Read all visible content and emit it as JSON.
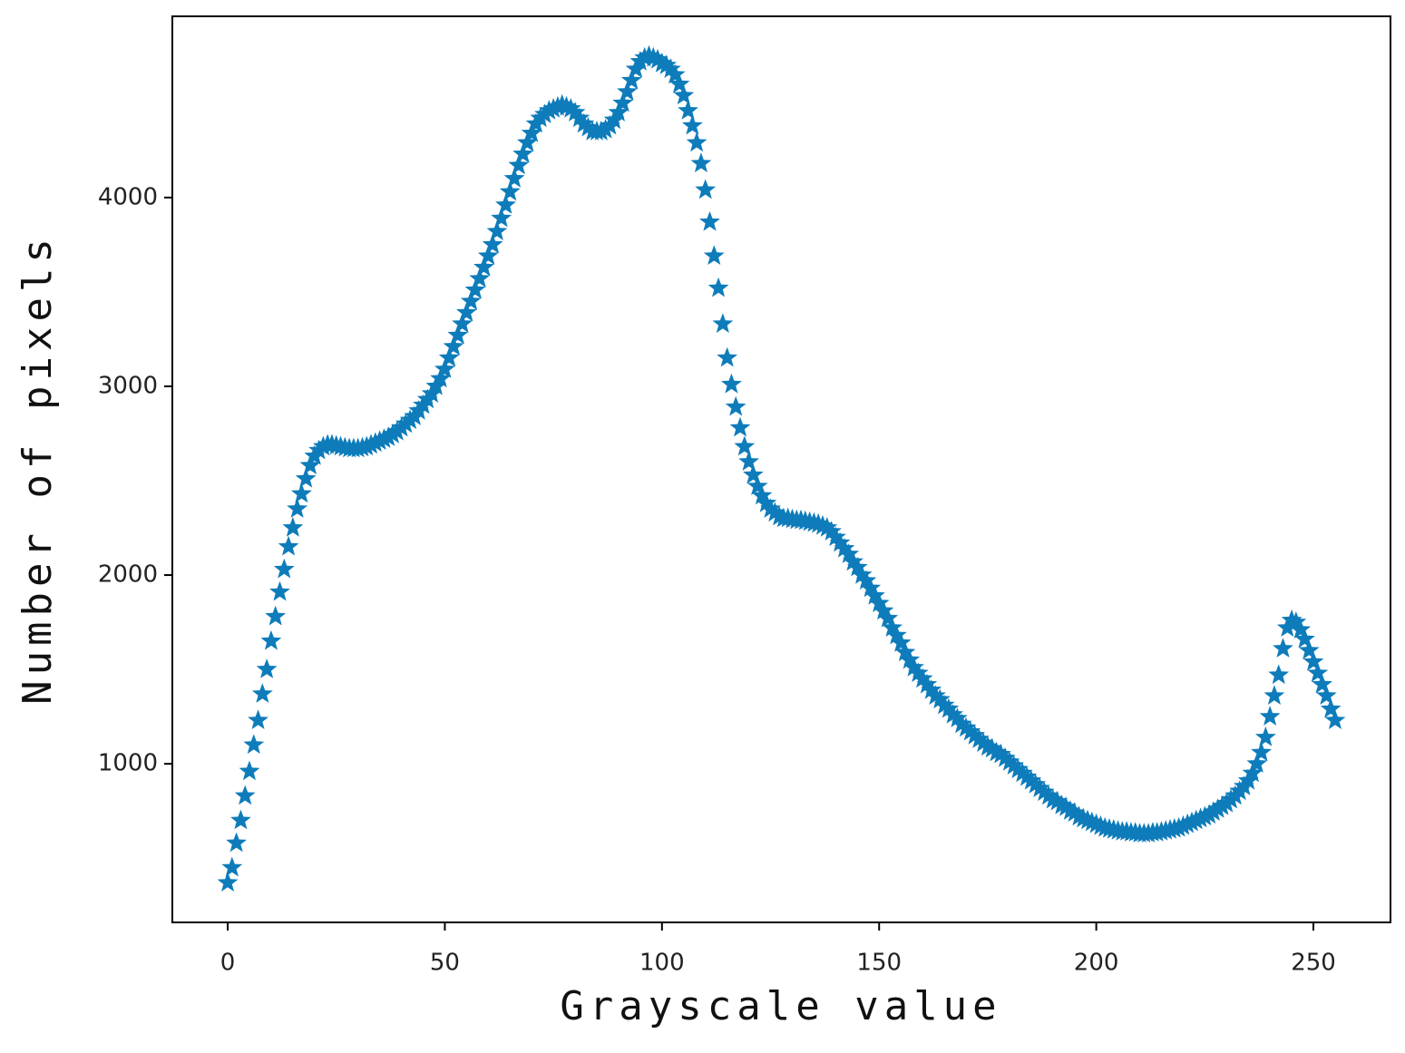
{
  "chart_data": {
    "type": "scatter",
    "x_label": "Grayscale value",
    "y_label": "Number of pixels",
    "marker": "star",
    "color": "#0e7cba",
    "xlim": [
      -12.75,
      267.75
    ],
    "ylim": [
      160,
      4960
    ],
    "xticks": [
      0,
      50,
      100,
      150,
      200,
      250
    ],
    "yticks": [
      1000,
      2000,
      3000,
      4000
    ],
    "x": [
      0,
      1,
      2,
      3,
      4,
      5,
      6,
      7,
      8,
      9,
      10,
      11,
      12,
      13,
      14,
      15,
      16,
      17,
      18,
      19,
      20,
      21,
      22,
      23,
      24,
      25,
      26,
      27,
      28,
      29,
      30,
      31,
      32,
      33,
      34,
      35,
      36,
      37,
      38,
      39,
      40,
      41,
      42,
      43,
      44,
      45,
      46,
      47,
      48,
      49,
      50,
      51,
      52,
      53,
      54,
      55,
      56,
      57,
      58,
      59,
      60,
      61,
      62,
      63,
      64,
      65,
      66,
      67,
      68,
      69,
      70,
      71,
      72,
      73,
      74,
      75,
      76,
      77,
      78,
      79,
      80,
      81,
      82,
      83,
      84,
      85,
      86,
      87,
      88,
      89,
      90,
      91,
      92,
      93,
      94,
      95,
      96,
      97,
      98,
      99,
      100,
      101,
      102,
      103,
      104,
      105,
      106,
      107,
      108,
      109,
      110,
      111,
      112,
      113,
      114,
      115,
      116,
      117,
      118,
      119,
      120,
      121,
      122,
      123,
      124,
      125,
      126,
      127,
      128,
      129,
      130,
      131,
      132,
      133,
      134,
      135,
      136,
      137,
      138,
      139,
      140,
      141,
      142,
      143,
      144,
      145,
      146,
      147,
      148,
      149,
      150,
      151,
      152,
      153,
      154,
      155,
      156,
      157,
      158,
      159,
      160,
      161,
      162,
      163,
      164,
      165,
      166,
      167,
      168,
      169,
      170,
      171,
      172,
      173,
      174,
      175,
      176,
      177,
      178,
      179,
      180,
      181,
      182,
      183,
      184,
      185,
      186,
      187,
      188,
      189,
      190,
      191,
      192,
      193,
      194,
      195,
      196,
      197,
      198,
      199,
      200,
      201,
      202,
      203,
      204,
      205,
      206,
      207,
      208,
      209,
      210,
      211,
      212,
      213,
      214,
      215,
      216,
      217,
      218,
      219,
      220,
      221,
      222,
      223,
      224,
      225,
      226,
      227,
      228,
      229,
      230,
      231,
      232,
      233,
      234,
      235,
      236,
      237,
      238,
      239,
      240,
      241,
      242,
      243,
      244,
      245,
      246,
      247,
      248,
      249,
      250,
      251,
      252,
      253,
      254,
      255
    ],
    "values": [
      370,
      450,
      580,
      700,
      830,
      960,
      1100,
      1230,
      1370,
      1500,
      1650,
      1780,
      1910,
      2030,
      2150,
      2250,
      2350,
      2430,
      2510,
      2580,
      2630,
      2660,
      2680,
      2690,
      2690,
      2685,
      2680,
      2675,
      2670,
      2670,
      2670,
      2675,
      2680,
      2690,
      2700,
      2710,
      2720,
      2730,
      2745,
      2760,
      2780,
      2800,
      2820,
      2840,
      2870,
      2900,
      2930,
      2960,
      3000,
      3040,
      3090,
      3150,
      3210,
      3270,
      3330,
      3390,
      3450,
      3510,
      3570,
      3630,
      3690,
      3750,
      3820,
      3890,
      3960,
      4030,
      4100,
      4170,
      4230,
      4290,
      4340,
      4390,
      4420,
      4440,
      4460,
      4470,
      4480,
      4490,
      4480,
      4470,
      4450,
      4420,
      4390,
      4370,
      4350,
      4350,
      4350,
      4360,
      4380,
      4410,
      4450,
      4500,
      4560,
      4620,
      4680,
      4720,
      4740,
      4750,
      4740,
      4730,
      4710,
      4700,
      4680,
      4650,
      4600,
      4540,
      4460,
      4380,
      4290,
      4180,
      4040,
      3870,
      3690,
      3520,
      3330,
      3150,
      3010,
      2890,
      2780,
      2680,
      2600,
      2530,
      2470,
      2420,
      2380,
      2350,
      2330,
      2310,
      2300,
      2300,
      2295,
      2290,
      2290,
      2285,
      2280,
      2275,
      2270,
      2260,
      2250,
      2230,
      2200,
      2170,
      2140,
      2110,
      2070,
      2040,
      2000,
      1970,
      1930,
      1890,
      1850,
      1810,
      1770,
      1720,
      1680,
      1640,
      1590,
      1550,
      1510,
      1480,
      1450,
      1420,
      1390,
      1360,
      1340,
      1310,
      1290,
      1260,
      1240,
      1210,
      1190,
      1170,
      1150,
      1130,
      1110,
      1090,
      1080,
      1060,
      1050,
      1030,
      1010,
      990,
      970,
      950,
      930,
      910,
      890,
      870,
      850,
      830,
      810,
      800,
      780,
      770,
      750,
      740,
      720,
      710,
      700,
      690,
      680,
      670,
      660,
      655,
      650,
      645,
      640,
      640,
      635,
      635,
      630,
      630,
      630,
      635,
      635,
      640,
      645,
      650,
      655,
      660,
      670,
      680,
      690,
      700,
      710,
      720,
      730,
      745,
      760,
      775,
      790,
      810,
      830,
      855,
      880,
      910,
      950,
      1000,
      1060,
      1140,
      1250,
      1360,
      1470,
      1610,
      1720,
      1760,
      1750,
      1710,
      1660,
      1600,
      1540,
      1480,
      1420,
      1360,
      1290,
      1230
    ]
  }
}
